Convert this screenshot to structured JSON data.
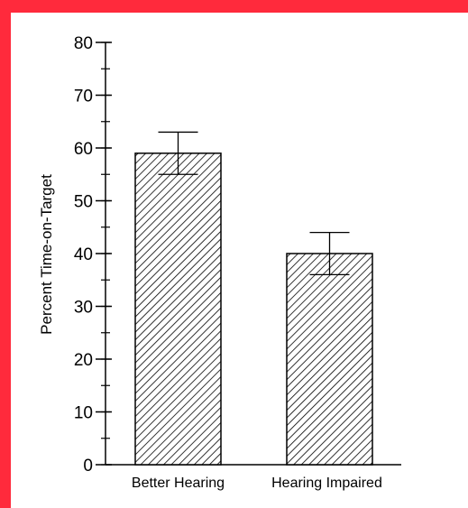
{
  "colors": {
    "border": "#ff2a3c",
    "bar_stroke": "#000000",
    "hatch": "#000000",
    "background": "#ffffff"
  },
  "chart_data": {
    "type": "bar",
    "categories": [
      "Better Hearing",
      "Hearing Impaired"
    ],
    "values": [
      59,
      40
    ],
    "error_bars": [
      {
        "low": 55,
        "high": 63
      },
      {
        "low": 36,
        "high": 44
      }
    ],
    "ylabel": "Percent   Time-on-Target",
    "ylim": [
      0,
      80
    ],
    "y_major_ticks": [
      0,
      10,
      20,
      30,
      40,
      50,
      60,
      70,
      80
    ],
    "y_minor_step": 5,
    "fill_pattern": "diagonal-hatch",
    "grid": false,
    "legend": "none"
  }
}
